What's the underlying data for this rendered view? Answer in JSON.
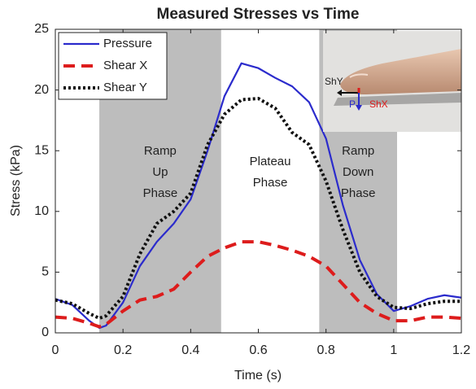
{
  "chart_data": {
    "type": "line",
    "title": "Measured Stresses vs Time",
    "x_label": "Time (s)",
    "y_label": "Stress (kPa)",
    "x": [
      0,
      0.05,
      0.1,
      0.13,
      0.15,
      0.2,
      0.25,
      0.3,
      0.35,
      0.4,
      0.45,
      0.5,
      0.55,
      0.6,
      0.65,
      0.7,
      0.75,
      0.8,
      0.85,
      0.9,
      0.95,
      1.0,
      1.05,
      1.1,
      1.15,
      1.2
    ],
    "series": [
      {
        "name": "Pressure",
        "color": "#2b2bcc",
        "dash": "solid",
        "values": [
          2.8,
          2.3,
          1.0,
          0.4,
          0.6,
          2.5,
          5.5,
          7.5,
          9.0,
          11.0,
          15.0,
          19.5,
          22.2,
          21.8,
          21.0,
          20.3,
          19.0,
          16.0,
          10.5,
          6.0,
          3.2,
          1.8,
          2.2,
          2.8,
          3.1,
          2.9
        ]
      },
      {
        "name": "Shear X",
        "color": "#dd1c1c",
        "dash": "dashed",
        "values": [
          1.3,
          1.2,
          0.8,
          0.5,
          0.7,
          1.8,
          2.7,
          3.0,
          3.6,
          5.0,
          6.3,
          7.0,
          7.5,
          7.5,
          7.2,
          6.8,
          6.3,
          5.5,
          4.0,
          2.5,
          1.6,
          1.0,
          1.0,
          1.3,
          1.3,
          1.2
        ]
      },
      {
        "name": "Shear Y",
        "color": "#111111",
        "dash": "dotted",
        "values": [
          2.7,
          2.4,
          1.6,
          1.2,
          1.4,
          3.0,
          6.5,
          9.0,
          10.0,
          11.5,
          15.5,
          18.0,
          19.2,
          19.3,
          18.5,
          16.5,
          15.5,
          12.5,
          8.5,
          5.0,
          3.0,
          2.1,
          2.0,
          2.4,
          2.6,
          2.6
        ]
      }
    ],
    "phases": [
      {
        "lines": [
          "Ramp",
          "Up",
          "Phase"
        ],
        "range": [
          0.13,
          0.49
        ],
        "shaded": true
      },
      {
        "lines": [
          "Plateau",
          "Phase"
        ],
        "range": [
          0.49,
          0.78
        ],
        "shaded": false
      },
      {
        "lines": [
          "Ramp",
          "Down",
          "Phase"
        ],
        "range": [
          0.78,
          1.01
        ],
        "shaded": true
      }
    ],
    "inset_labels": {
      "shy": "ShY",
      "p": "P",
      "shx": "ShX"
    },
    "xlim": [
      0,
      1.2
    ],
    "xticks": [
      0,
      0.2,
      0.4,
      0.6,
      0.8,
      1,
      1.2
    ],
    "ylim": [
      0,
      25
    ],
    "yticks": [
      0,
      5,
      10,
      15,
      20,
      25
    ],
    "legend": "upper-left",
    "grid": false
  }
}
